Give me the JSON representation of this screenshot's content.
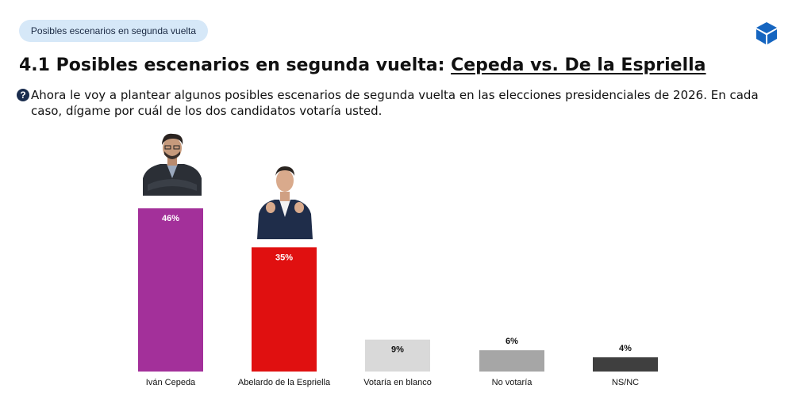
{
  "header": {
    "pill_label": "Posibles escenarios en segunda vuelta",
    "logo_icon": "cube-icon"
  },
  "title": {
    "prefix": "4.1 Posibles escenarios en segunda vuelta:",
    "emphasis": "Cepeda vs. De la Espriella"
  },
  "question": {
    "icon": "question-icon",
    "text": "Ahora le voy a plantear algunos posibles escenarios de segunda vuelta en las elecciones presidenciales de 2026. En cada caso, dígame por cuál de los dos candidatos votaría usted."
  },
  "chart_data": {
    "type": "bar",
    "categories": [
      "Iván Cepeda",
      "Abelardo de la Espriella",
      "Votaría en blanco",
      "No votaría",
      "NS/NC"
    ],
    "values": [
      46,
      35,
      9,
      6,
      4
    ],
    "value_labels": [
      "46%",
      "35%",
      "9%",
      "6%",
      "4%"
    ],
    "colors": [
      "#a3309a",
      "#e01010",
      "#d9d9d9",
      "#a6a6a6",
      "#3f3f3f"
    ],
    "label_colors": [
      "#ffffff",
      "#ffffff",
      "#111111",
      "#111111",
      "#111111"
    ],
    "title": "",
    "xlabel": "",
    "ylabel": "",
    "ylim": [
      0,
      46
    ],
    "grid": false,
    "legend": "none"
  }
}
